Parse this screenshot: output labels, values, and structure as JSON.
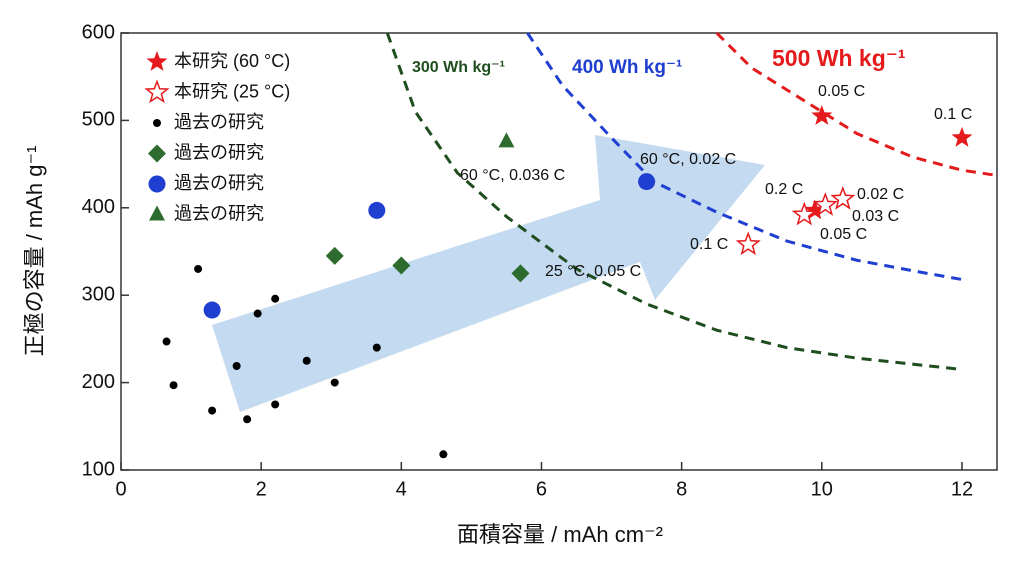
{
  "chart_data": {
    "type": "scatter",
    "x_label": "面積容量 / mAh cm⁻²",
    "y_label": "正極の容量 / mAh g⁻¹",
    "xlim": [
      0,
      12.5
    ],
    "xticks": [
      0,
      2,
      4,
      6,
      8,
      10,
      12
    ],
    "ylim": [
      100,
      600
    ],
    "yticks": [
      100,
      200,
      300,
      400,
      500,
      600
    ],
    "series": [
      {
        "name": "本研究 (60 °C)",
        "color": "#e41a1c",
        "marker": "star",
        "x": [
          10.0,
          12.0,
          9.9
        ],
        "values": [
          505,
          480,
          397
        ]
      },
      {
        "name": "本研究 (25 °C)",
        "color": "#e41a1c",
        "marker": "star-open",
        "x": [
          8.95,
          9.75,
          10.05,
          10.3
        ],
        "values": [
          358,
          392,
          403,
          410
        ]
      },
      {
        "name": "過去の研究",
        "color": "#000000",
        "marker": "dot",
        "x": [
          0.65,
          0.75,
          1.1,
          1.3,
          1.65,
          1.8,
          1.95,
          2.2,
          2.2,
          2.65,
          3.05,
          3.65,
          4.6
        ],
        "values": [
          247,
          197,
          330,
          168,
          219,
          158,
          279,
          175,
          296,
          225,
          200,
          240,
          118
        ]
      },
      {
        "name": "過去の研究",
        "color": "#2e6b2e",
        "marker": "diamond",
        "x": [
          3.05,
          4.0,
          5.7
        ],
        "values": [
          345,
          334,
          325
        ]
      },
      {
        "name": "過去の研究",
        "color": "#1f3fd0",
        "marker": "circle",
        "x": [
          1.3,
          3.65,
          7.5
        ],
        "values": [
          283,
          397,
          430
        ]
      },
      {
        "name": "過去の研究",
        "color": "#2e6b2e",
        "marker": "triangle",
        "x": [
          5.5
        ],
        "values": [
          476
        ]
      }
    ],
    "curves": [
      {
        "name": "300 Wh kg⁻¹",
        "color": "#1e4d1e",
        "x": [
          3.8,
          4.2,
          4.8,
          5.5,
          6.5,
          7.5,
          8.5,
          9.5,
          10.5,
          12
        ],
        "values": [
          600,
          510,
          440,
          390,
          330,
          290,
          260,
          240,
          228,
          215
        ]
      },
      {
        "name": "400 Wh kg⁻¹",
        "color": "#1f3fd0",
        "x": [
          5.8,
          6.3,
          7,
          7.6,
          8.5,
          9.5,
          10.5,
          11.5,
          12
        ],
        "values": [
          600,
          540,
          480,
          430,
          395,
          362,
          340,
          325,
          318
        ]
      },
      {
        "name": "500 Wh kg⁻¹",
        "color": "#e41a1c",
        "x": [
          8.5,
          9,
          9.7,
          10.5,
          11.3,
          12,
          12.5
        ],
        "values": [
          600,
          560,
          525,
          485,
          458,
          443,
          437
        ]
      }
    ],
    "annotations": [
      "0.05 C",
      "0.1 C",
      "0.2 C",
      "0.02 C",
      "0.03 C",
      "0.05 C",
      "0.1 C",
      "60 °C, 0.02 C",
      "60 °C, 0.036 C",
      "25 °C, 0.05 C"
    ]
  }
}
